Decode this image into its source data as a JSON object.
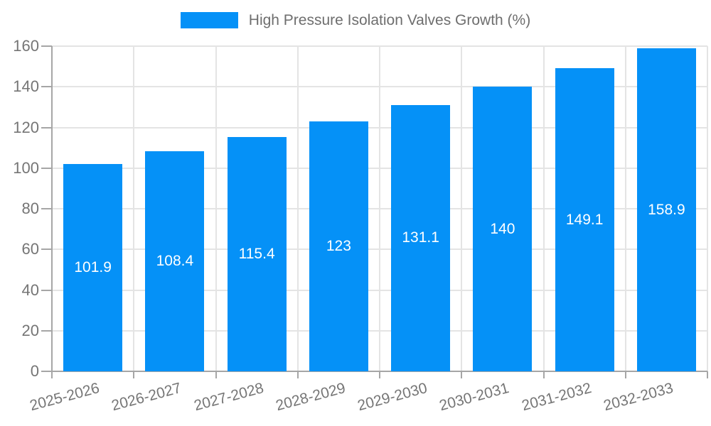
{
  "legend": {
    "label": "High Pressure Isolation Valves Growth (%)"
  },
  "colors": {
    "bar": "#0591F7",
    "bar_label_text": "#FFFFFF",
    "grid_line": "#E4E4E4",
    "axis_line": "#A6A6A6",
    "axis_tick_text": "#757575",
    "legend_text": "#6E6E6E",
    "background": "#FFFFFF"
  },
  "chart_data": {
    "type": "bar",
    "title": "High Pressure Isolation Valves Growth (%)",
    "categories": [
      "2025-2026",
      "2026-2027",
      "2027-2028",
      "2028-2029",
      "2029-2030",
      "2030-2031",
      "2031-2032",
      "2032-2033"
    ],
    "values": [
      101.9,
      108.4,
      115.4,
      123,
      131.1,
      140,
      149.1,
      158.9
    ],
    "value_labels": [
      "101.9",
      "108.4",
      "115.4",
      "123",
      "131.1",
      "140",
      "149.1",
      "158.9"
    ],
    "xlabel": "",
    "ylabel": "",
    "ylim": [
      0,
      160
    ],
    "yticks": [
      0,
      20,
      40,
      60,
      80,
      100,
      120,
      140,
      160
    ],
    "grid": "horizontal-and-vertical",
    "legend_position": "top-center",
    "value_label_position": "inside-center",
    "x_tick_label_rotation_deg": -15
  }
}
